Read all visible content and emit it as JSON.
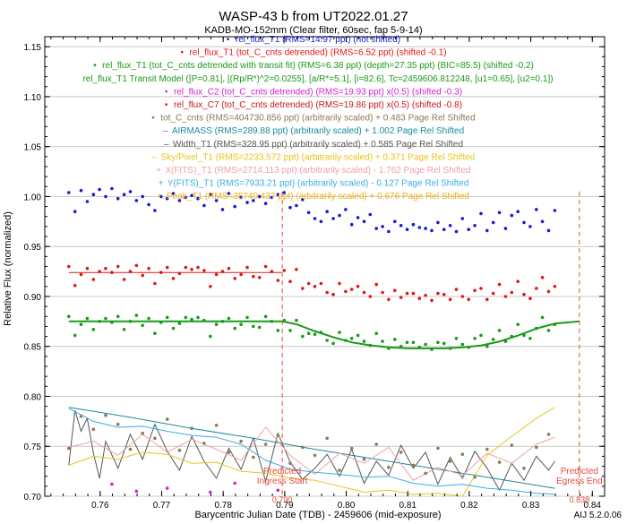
{
  "chart_data": {
    "type": "scatter",
    "title": "WASP-43 b from UT2022.01.27",
    "subtitle": "KADB-MO-152mm (Clear filter, 60sec, fap 5-9-14)",
    "xlabel": "Barycentric Julian Date (TDB) - 2459606 (mid-exposure)",
    "ylabel": "Relative Flux (normalized)",
    "xlim": [
      0.751,
      0.842
    ],
    "ylim": [
      0.7,
      1.16
    ],
    "x_ticks": [
      "0.76",
      "0.77",
      "0.78",
      "0.79",
      "0.80",
      "0.81",
      "0.82",
      "0.83",
      "0.84"
    ],
    "y_ticks": [
      "0.70",
      "0.75",
      "0.80",
      "0.85",
      "0.90",
      "0.95",
      "1.00",
      "1.05",
      "1.10",
      "1.15"
    ],
    "grid": true,
    "legend_placement": "top-center",
    "version_label": "AIJ 5.2.0.06",
    "vlines": [
      {
        "x": 0.7896,
        "label": "Predicted\nIngress Start",
        "value_label": "0.790",
        "color": "#e8473b"
      },
      {
        "x": 0.8379,
        "label": "Predicted\nEgress End",
        "value_label": "0.838",
        "color": "#e8473b"
      }
    ],
    "legend": [
      {
        "symbol": "•",
        "text": "rel_flux_T1 (RMS=14.97 ppt) (not shifted)",
        "color": "#1a1ad2"
      },
      {
        "symbol": "•",
        "text": "rel_flux_T1 (tot_C_cnts detrended) (RMS=6.52 ppt) (shifted -0.1)",
        "color": "#e01818"
      },
      {
        "symbol": "•",
        "text": "rel_flux_T1 (tot_C_cnts detrended with transit fit) (RMS=6.38 ppt) (depth=27.35 ppt) (BIC=85.5) (shifted -0.2)",
        "color": "#1a9a1a"
      },
      {
        "symbol": "",
        "text": "rel_flux_T1 Transit Model ([P=0.81], [(Rp/R*)^2=0.0255], [a/R*=5.1], [i=82.6], Tc=2459606.812248, [u1=0.65], [u2=0.1])",
        "color": "#1a9a1a"
      },
      {
        "symbol": "•",
        "text": "rel_flux_C2 (tot_C_cnts detrended) (RMS=19.93 ppt) x(0.5) (shifted -0.3)",
        "color": "#d61fd6"
      },
      {
        "symbol": "•",
        "text": "rel_flux_C7 (tot_C_cnts detrended) (RMS=19.86 ppt) x(0.5) (shifted -0.8)",
        "color": "#c81818"
      },
      {
        "symbol": "•",
        "text": "tot_C_cnts (RMS=404730.856 ppt) (arbitrarily scaled) + 0.483 Page Rel Shifted",
        "color": "#8b7a55"
      },
      {
        "symbol": "–",
        "text": "AIRMASS (RMS=289.88 ppt) (arbitrarily scaled) + 1.002 Page Rel Shifted",
        "color": "#1a8a9a"
      },
      {
        "symbol": "–",
        "text": "Width_T1 (RMS=328.95 ppt) (arbitrarily scaled) + 0.585 Page Rel Shifted",
        "color": "#555555"
      },
      {
        "symbol": "–",
        "text": "Sky/Pixel_T1 (RMS=2233.572 ppt) (arbitrarily scaled) + 0.371 Page Rel Shifted",
        "color": "#e8c418"
      },
      {
        "symbol": "+",
        "text": "X(FITS)_T1 (RMS=2714.113 ppt) (arbitrarily scaled) - 1.762 Page Rel Shifted",
        "color": "#f0a0a8"
      },
      {
        "symbol": "+",
        "text": "Y(FITS)_T1 (RMS=7933.21 ppt) (arbitrarily scaled) - 0.127 Page Rel Shifted",
        "color": "#3aaee0"
      },
      {
        "symbol": "•",
        "text": "Peak_T1 (RMS=35740.437 ppt) (arbitrarily scaled) + 0.676 Page Rel Shifted",
        "color": "#f0b010"
      }
    ],
    "series": [
      {
        "name": "rel_flux_T1",
        "color": "#1a1ad2",
        "marker": "dot",
        "x": [
          0.7549,
          0.7559,
          0.7569,
          0.7579,
          0.7589,
          0.7599,
          0.7609,
          0.7619,
          0.7629,
          0.7639,
          0.7649,
          0.7659,
          0.7669,
          0.7679,
          0.7689,
          0.7699,
          0.7709,
          0.7719,
          0.7729,
          0.7739,
          0.7749,
          0.7759,
          0.7769,
          0.7779,
          0.7789,
          0.7799,
          0.7809,
          0.7819,
          0.7829,
          0.7839,
          0.7849,
          0.7859,
          0.7869,
          0.7879,
          0.7889,
          0.7899,
          0.7909,
          0.7919,
          0.7929,
          0.7939,
          0.7949,
          0.7959,
          0.7969,
          0.7979,
          0.7989,
          0.7999,
          0.8009,
          0.8019,
          0.8029,
          0.8039,
          0.8049,
          0.8059,
          0.8069,
          0.8079,
          0.8089,
          0.8099,
          0.8109,
          0.8119,
          0.8129,
          0.8139,
          0.8149,
          0.8159,
          0.8169,
          0.8179,
          0.8189,
          0.8199,
          0.8209,
          0.8219,
          0.8229,
          0.8239,
          0.8249,
          0.8259,
          0.8269,
          0.8279,
          0.8289,
          0.8299,
          0.8309,
          0.8319,
          0.8329,
          0.8339
        ],
        "y": [
          1.004,
          0.985,
          1.006,
          0.995,
          1.002,
          1.007,
          1.0,
          1.008,
          0.998,
          1.002,
          1.005,
          0.996,
          1.0,
          0.992,
          0.986,
          1.0,
          0.998,
          1.003,
          0.996,
          0.999,
          1.001,
          0.998,
          0.991,
          1.002,
          0.996,
          0.987,
          1.003,
          0.99,
          0.999,
          0.994,
          0.996,
          1.0,
          0.993,
          0.999,
          1.002,
          1.004,
          0.989,
          0.991,
          0.997,
          0.984,
          0.978,
          0.975,
          0.985,
          0.978,
          0.981,
          0.987,
          0.972,
          0.979,
          0.975,
          0.982,
          0.968,
          0.97,
          0.965,
          0.975,
          0.971,
          0.967,
          0.972,
          0.969,
          0.968,
          0.966,
          0.974,
          0.967,
          0.971,
          0.965,
          0.978,
          0.967,
          0.971,
          0.983,
          0.966,
          0.974,
          0.984,
          0.968,
          0.981,
          0.985,
          0.974,
          0.97,
          0.987,
          0.975,
          0.966,
          0.986
        ]
      },
      {
        "name": "rel_flux_T1 (tot_C_cnts detrended)",
        "color": "#e01818",
        "marker": "dot",
        "x": [
          0.7549,
          0.7559,
          0.7569,
          0.7579,
          0.7589,
          0.7599,
          0.7609,
          0.7619,
          0.7629,
          0.7639,
          0.7649,
          0.7659,
          0.7669,
          0.7679,
          0.7689,
          0.7699,
          0.7709,
          0.7719,
          0.7729,
          0.7739,
          0.7749,
          0.7759,
          0.7769,
          0.7779,
          0.7789,
          0.7799,
          0.7809,
          0.7819,
          0.7829,
          0.7839,
          0.7849,
          0.7859,
          0.7869,
          0.7879,
          0.7889,
          0.7899,
          0.7909,
          0.7919,
          0.7929,
          0.7939,
          0.7949,
          0.7959,
          0.7969,
          0.7979,
          0.7989,
          0.7999,
          0.8009,
          0.8019,
          0.8029,
          0.8039,
          0.8049,
          0.8059,
          0.8069,
          0.8079,
          0.8089,
          0.8099,
          0.8109,
          0.8119,
          0.8129,
          0.8139,
          0.8149,
          0.8159,
          0.8169,
          0.8179,
          0.8189,
          0.8199,
          0.8209,
          0.8219,
          0.8229,
          0.8239,
          0.8249,
          0.8259,
          0.8269,
          0.8279,
          0.8289,
          0.8299,
          0.8309,
          0.8319,
          0.8329,
          0.8339
        ],
        "y": [
          0.93,
          0.911,
          0.922,
          0.928,
          0.917,
          0.925,
          0.928,
          0.924,
          0.93,
          0.917,
          0.925,
          0.931,
          0.921,
          0.928,
          0.913,
          0.924,
          0.929,
          0.918,
          0.923,
          0.929,
          0.927,
          0.929,
          0.926,
          0.91,
          0.922,
          0.925,
          0.928,
          0.918,
          0.922,
          0.929,
          0.92,
          0.919,
          0.93,
          0.925,
          0.916,
          0.926,
          0.915,
          0.927,
          0.908,
          0.913,
          0.91,
          0.913,
          0.904,
          0.902,
          0.913,
          0.905,
          0.907,
          0.91,
          0.904,
          0.9,
          0.912,
          0.904,
          0.897,
          0.906,
          0.899,
          0.903,
          0.903,
          0.898,
          0.901,
          0.896,
          0.903,
          0.902,
          0.897,
          0.907,
          0.9,
          0.897,
          0.906,
          0.908,
          0.897,
          0.903,
          0.912,
          0.9,
          0.904,
          0.915,
          0.902,
          0.898,
          0.908,
          0.919,
          0.905,
          0.91
        ]
      },
      {
        "name": "rel_flux_T1 (tot_C_cnts detrended with transit fit)",
        "color": "#1a9a1a",
        "marker": "dot",
        "x": [
          0.7549,
          0.7559,
          0.7569,
          0.7579,
          0.7589,
          0.7599,
          0.7609,
          0.7619,
          0.7629,
          0.7639,
          0.7649,
          0.7659,
          0.7669,
          0.7679,
          0.7689,
          0.7699,
          0.7709,
          0.7719,
          0.7729,
          0.7739,
          0.7749,
          0.7759,
          0.7769,
          0.7779,
          0.7789,
          0.7799,
          0.7809,
          0.7819,
          0.7829,
          0.7839,
          0.7849,
          0.7859,
          0.7869,
          0.7879,
          0.7889,
          0.7899,
          0.7909,
          0.7919,
          0.7929,
          0.7939,
          0.7949,
          0.7959,
          0.7969,
          0.7979,
          0.7989,
          0.7999,
          0.8009,
          0.8019,
          0.8029,
          0.8039,
          0.8049,
          0.8059,
          0.8069,
          0.8079,
          0.8089,
          0.8099,
          0.8109,
          0.8119,
          0.8129,
          0.8139,
          0.8149,
          0.8159,
          0.8169,
          0.8179,
          0.8189,
          0.8199,
          0.8209,
          0.8219,
          0.8229,
          0.8239,
          0.8249,
          0.8259,
          0.8269,
          0.8279,
          0.8289,
          0.8299,
          0.8309,
          0.8319,
          0.8329,
          0.8339
        ],
        "y": [
          0.88,
          0.861,
          0.872,
          0.878,
          0.867,
          0.875,
          0.878,
          0.874,
          0.88,
          0.867,
          0.875,
          0.881,
          0.871,
          0.878,
          0.863,
          0.874,
          0.879,
          0.868,
          0.873,
          0.879,
          0.877,
          0.879,
          0.876,
          0.86,
          0.872,
          0.875,
          0.878,
          0.868,
          0.872,
          0.879,
          0.87,
          0.869,
          0.88,
          0.875,
          0.866,
          0.876,
          0.866,
          0.876,
          0.86,
          0.863,
          0.862,
          0.864,
          0.856,
          0.853,
          0.864,
          0.856,
          0.858,
          0.861,
          0.855,
          0.851,
          0.863,
          0.855,
          0.848,
          0.857,
          0.85,
          0.854,
          0.854,
          0.849,
          0.852,
          0.847,
          0.854,
          0.853,
          0.848,
          0.858,
          0.852,
          0.849,
          0.858,
          0.861,
          0.85,
          0.857,
          0.866,
          0.855,
          0.86,
          0.872,
          0.861,
          0.858,
          0.868,
          0.879,
          0.866,
          0.872
        ]
      },
      {
        "name": "rel_flux_C2 (tot_C_cnts detrended)",
        "color": "#d61fd6",
        "marker": "dot",
        "x": [
          0.7619,
          0.7659,
          0.7709,
          0.7779,
          0.7819,
          0.7889
        ],
        "y": [
          0.712,
          0.705,
          0.708,
          0.704,
          0.713,
          0.706
        ]
      },
      {
        "name": "tot_C_cnts",
        "color": "#8b7a55",
        "marker": "dot",
        "x": [
          0.7549,
          0.7569,
          0.7589,
          0.7609,
          0.7629,
          0.7649,
          0.7669,
          0.7689,
          0.7709,
          0.7729,
          0.7749,
          0.7769,
          0.7789,
          0.7809,
          0.7829,
          0.7849,
          0.7869,
          0.7889,
          0.7909,
          0.7929,
          0.7949,
          0.7969,
          0.7989,
          0.8009,
          0.8029,
          0.8049,
          0.8069,
          0.8089,
          0.8109,
          0.8129,
          0.8149,
          0.8169,
          0.8189,
          0.8209,
          0.8229,
          0.8249,
          0.8269,
          0.8289,
          0.8309,
          0.8329
        ],
        "y": [
          0.748,
          0.78,
          0.767,
          0.781,
          0.772,
          0.747,
          0.763,
          0.758,
          0.777,
          0.746,
          0.768,
          0.753,
          0.771,
          0.744,
          0.755,
          0.739,
          0.752,
          0.761,
          0.733,
          0.749,
          0.741,
          0.758,
          0.726,
          0.748,
          0.737,
          0.752,
          0.729,
          0.744,
          0.731,
          0.723,
          0.748,
          0.735,
          0.742,
          0.719,
          0.747,
          0.734,
          0.751,
          0.728,
          0.749,
          0.762
        ]
      }
    ],
    "lines": [
      {
        "name": "rel_flux_T1 (tot_C_cnts detrended) fit",
        "color": "#e01818",
        "x": [
          0.7549,
          0.7895
        ],
        "y": [
          0.924,
          0.924
        ]
      },
      {
        "name": "rel_flux_T1 Transit Model",
        "color": "#1a9a1a",
        "x": [
          0.7549,
          0.7896,
          0.792,
          0.795,
          0.798,
          0.801,
          0.804,
          0.807,
          0.81,
          0.813,
          0.816,
          0.819,
          0.822,
          0.825,
          0.828,
          0.831,
          0.834,
          0.8379
        ],
        "y": [
          0.875,
          0.875,
          0.872,
          0.865,
          0.859,
          0.854,
          0.851,
          0.849,
          0.848,
          0.848,
          0.848,
          0.849,
          0.851,
          0.855,
          0.861,
          0.868,
          0.873,
          0.875
        ]
      },
      {
        "name": "AIRMASS",
        "color": "#1a8a9a",
        "x": [
          0.7549,
          0.7649,
          0.7749,
          0.7849,
          0.7949,
          0.8049,
          0.8149,
          0.8249,
          0.8339
        ],
        "y": [
          0.789,
          0.779,
          0.768,
          0.758,
          0.747,
          0.737,
          0.727,
          0.717,
          0.708
        ]
      },
      {
        "name": "Width_T1",
        "color": "#555555",
        "x": [
          0.7549,
          0.7559,
          0.7569,
          0.7579,
          0.7589,
          0.7599,
          0.7609,
          0.7629,
          0.7649,
          0.7669,
          0.7689,
          0.7709,
          0.7729,
          0.7749,
          0.7769,
          0.7789,
          0.7809,
          0.7829,
          0.7849,
          0.7869,
          0.7889,
          0.7909,
          0.7929,
          0.7949,
          0.7969,
          0.7989,
          0.8009,
          0.8029,
          0.8049,
          0.8069,
          0.8089,
          0.8109,
          0.8129,
          0.8149,
          0.8169,
          0.8189,
          0.8209,
          0.8229,
          0.8249,
          0.8269,
          0.8289,
          0.8309,
          0.8329,
          0.8339
        ],
        "y": [
          0.731,
          0.786,
          0.765,
          0.778,
          0.743,
          0.718,
          0.755,
          0.728,
          0.762,
          0.737,
          0.772,
          0.745,
          0.726,
          0.76,
          0.735,
          0.718,
          0.748,
          0.727,
          0.758,
          0.715,
          0.763,
          0.734,
          0.717,
          0.728,
          0.742,
          0.72,
          0.747,
          0.713,
          0.735,
          0.721,
          0.751,
          0.728,
          0.744,
          0.712,
          0.739,
          0.718,
          0.745,
          0.728,
          0.706,
          0.733,
          0.716,
          0.74,
          0.726,
          0.735
        ]
      },
      {
        "name": "Sky/Pixel_T1",
        "color": "#e8c418",
        "x": [
          0.7549,
          0.7589,
          0.7629,
          0.7669,
          0.7709,
          0.7749,
          0.7789,
          0.7829,
          0.7869,
          0.7909,
          0.7949,
          0.7989,
          0.8029,
          0.8069,
          0.8109,
          0.8149,
          0.8189,
          0.8229,
          0.8269,
          0.8309,
          0.8339
        ],
        "y": [
          0.731,
          0.74,
          0.737,
          0.744,
          0.742,
          0.733,
          0.734,
          0.725,
          0.723,
          0.718,
          0.716,
          0.71,
          0.704,
          0.706,
          0.702,
          0.703,
          0.7,
          0.741,
          0.76,
          0.778,
          0.789
        ]
      },
      {
        "name": "X(FITS)_T1",
        "color": "#f0a0a8",
        "x": [
          0.7549,
          0.7589,
          0.7629,
          0.7669,
          0.7709,
          0.7749,
          0.7789,
          0.7829,
          0.7869,
          0.7909,
          0.7949,
          0.7989,
          0.8029,
          0.8069,
          0.8109,
          0.8149,
          0.8189,
          0.8229,
          0.8269,
          0.8309,
          0.8339
        ],
        "y": [
          0.749,
          0.755,
          0.741,
          0.762,
          0.744,
          0.757,
          0.747,
          0.736,
          0.769,
          0.741,
          0.722,
          0.743,
          0.733,
          0.749,
          0.716,
          0.729,
          0.721,
          0.743,
          0.733,
          0.752,
          0.759
        ]
      },
      {
        "name": "Y(FITS)_T1",
        "color": "#3aaee0",
        "x": [
          0.7549,
          0.7589,
          0.7629,
          0.7669,
          0.7709,
          0.7749,
          0.7789,
          0.7829,
          0.7869,
          0.7909,
          0.7949,
          0.7989,
          0.8029,
          0.8069,
          0.8109,
          0.8149,
          0.8189,
          0.8229,
          0.8269,
          0.8309,
          0.8339
        ],
        "y": [
          0.788,
          0.775,
          0.769,
          0.77,
          0.765,
          0.761,
          0.759,
          0.752,
          0.736,
          0.727,
          0.724,
          0.722,
          0.719,
          0.72,
          0.713,
          0.71,
          0.712,
          0.708,
          0.706,
          0.703,
          0.702
        ]
      }
    ]
  }
}
